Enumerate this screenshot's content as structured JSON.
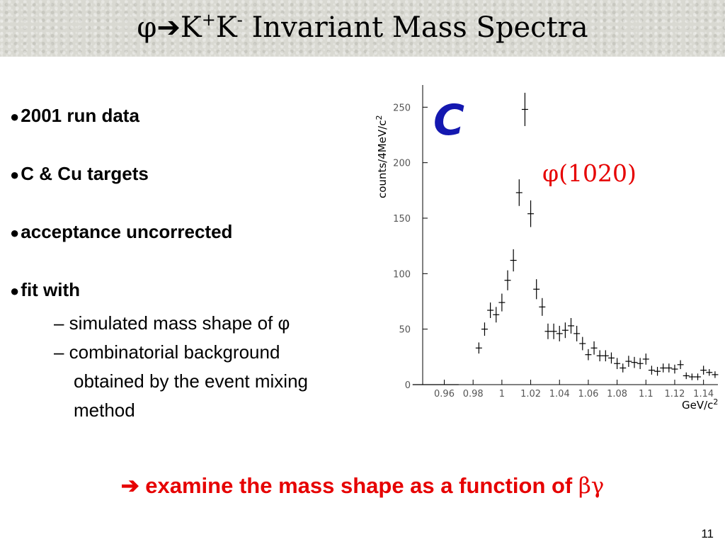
{
  "slide": {
    "title_prefix": "φ➔K",
    "title_sup1": "+",
    "title_mid": "K",
    "title_sup2": "-",
    "title_suffix": " Invariant Mass Spectra",
    "bullets": [
      "2001 run data",
      "C & Cu targets",
      "acceptance uncorrected",
      "fit with"
    ],
    "bullet_marker": "●",
    "sub_bullets": [
      "– simulated mass shape of φ",
      "– combinatorial background",
      "obtained by the event mixing",
      "method"
    ],
    "conclusion_text": "➔ examine the mass shape as a function of ",
    "conclusion_greek": "βγ",
    "page_number": "11"
  },
  "chart_data": {
    "type": "scatter",
    "panel_label": "C",
    "annotation": "φ(1020)",
    "xlabel": "GeV/c",
    "xlabel_sup": "2",
    "ylabel": "counts/4MeV/c",
    "ylabel_sup": "2",
    "xlim": [
      0.945,
      1.15
    ],
    "ylim": [
      0,
      270
    ],
    "xticks": [
      0.96,
      0.98,
      1,
      1.02,
      1.04,
      1.06,
      1.08,
      1.1,
      1.12,
      1.14
    ],
    "xtick_labels": [
      "0.96",
      "0.98",
      "1",
      "1.02",
      "1.04",
      "1.06",
      "1.08",
      "1.1",
      "1.12",
      "1.14"
    ],
    "yticks": [
      0,
      50,
      100,
      150,
      200,
      250
    ],
    "ytick_labels": [
      "0",
      "50",
      "100",
      "150",
      "200",
      "250"
    ],
    "grid": false,
    "points": [
      {
        "x": 0.954,
        "y": 0,
        "err": 0,
        "xerr": 0.016
      },
      {
        "x": 0.984,
        "y": 33,
        "err": 5
      },
      {
        "x": 0.988,
        "y": 50,
        "err": 6
      },
      {
        "x": 0.992,
        "y": 67,
        "err": 7
      },
      {
        "x": 0.996,
        "y": 63,
        "err": 7
      },
      {
        "x": 1.0,
        "y": 74,
        "err": 8
      },
      {
        "x": 1.004,
        "y": 94,
        "err": 9
      },
      {
        "x": 1.008,
        "y": 112,
        "err": 10
      },
      {
        "x": 1.012,
        "y": 173,
        "err": 12
      },
      {
        "x": 1.016,
        "y": 248,
        "err": 15
      },
      {
        "x": 1.02,
        "y": 154,
        "err": 12
      },
      {
        "x": 1.024,
        "y": 86,
        "err": 9
      },
      {
        "x": 1.028,
        "y": 70,
        "err": 8
      },
      {
        "x": 1.032,
        "y": 48,
        "err": 7
      },
      {
        "x": 1.036,
        "y": 48,
        "err": 7
      },
      {
        "x": 1.04,
        "y": 46,
        "err": 7
      },
      {
        "x": 1.044,
        "y": 49,
        "err": 7
      },
      {
        "x": 1.048,
        "y": 53,
        "err": 7
      },
      {
        "x": 1.052,
        "y": 46,
        "err": 7
      },
      {
        "x": 1.056,
        "y": 37,
        "err": 6
      },
      {
        "x": 1.06,
        "y": 27,
        "err": 5
      },
      {
        "x": 1.064,
        "y": 33,
        "err": 6
      },
      {
        "x": 1.068,
        "y": 26,
        "err": 5
      },
      {
        "x": 1.072,
        "y": 26,
        "err": 5
      },
      {
        "x": 1.076,
        "y": 24,
        "err": 5
      },
      {
        "x": 1.08,
        "y": 19,
        "err": 5
      },
      {
        "x": 1.084,
        "y": 15,
        "err": 4
      },
      {
        "x": 1.088,
        "y": 21,
        "err": 5
      },
      {
        "x": 1.092,
        "y": 20,
        "err": 5
      },
      {
        "x": 1.096,
        "y": 19,
        "err": 5
      },
      {
        "x": 1.1,
        "y": 23,
        "err": 5
      },
      {
        "x": 1.104,
        "y": 13,
        "err": 4
      },
      {
        "x": 1.108,
        "y": 12,
        "err": 4
      },
      {
        "x": 1.112,
        "y": 15,
        "err": 4
      },
      {
        "x": 1.116,
        "y": 15,
        "err": 4
      },
      {
        "x": 1.12,
        "y": 14,
        "err": 4
      },
      {
        "x": 1.124,
        "y": 18,
        "err": 4
      },
      {
        "x": 1.128,
        "y": 8,
        "err": 3
      },
      {
        "x": 1.132,
        "y": 7,
        "err": 3
      },
      {
        "x": 1.136,
        "y": 7,
        "err": 3
      },
      {
        "x": 1.14,
        "y": 13,
        "err": 4
      },
      {
        "x": 1.144,
        "y": 11,
        "err": 3
      },
      {
        "x": 1.148,
        "y": 9,
        "err": 3
      }
    ],
    "colors": {
      "markers": "#000000",
      "panel_label": "#1418b0",
      "annotation": "#e60000"
    }
  }
}
